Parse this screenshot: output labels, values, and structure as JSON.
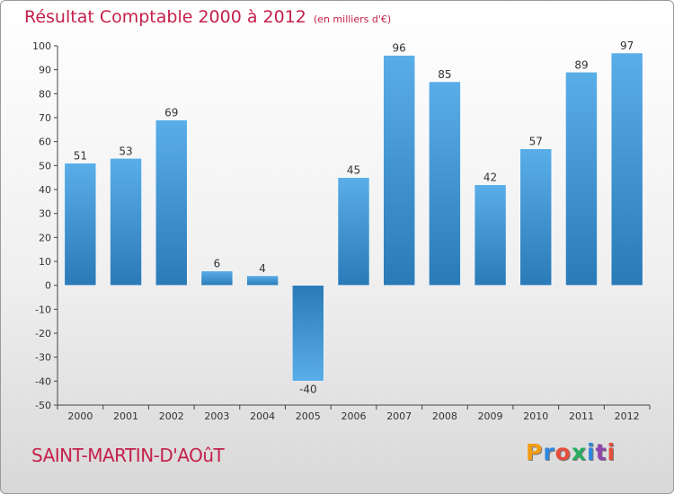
{
  "header": {
    "title": "Résultat Comptable 2000 à 2012",
    "unit": "(en milliers d'€)"
  },
  "footer": {
    "commune": "SAINT-MARTIN-D'AOûT",
    "logo_letters": [
      "P",
      "r",
      "o",
      "x",
      "i",
      "t",
      "i"
    ],
    "logo_colors": [
      "#f39c12",
      "#2e86de",
      "#e74c3c",
      "#27ae60",
      "#2e86de",
      "#8e44ad",
      "#e74c3c"
    ]
  },
  "chart_data": {
    "type": "bar",
    "title": "Résultat Comptable 2000 à 2012",
    "subtitle": "(en milliers d'€)",
    "categories": [
      "2000",
      "2001",
      "2002",
      "2003",
      "2004",
      "2005",
      "2006",
      "2007",
      "2008",
      "2009",
      "2010",
      "2011",
      "2012"
    ],
    "values": [
      51,
      53,
      69,
      6,
      4,
      -40,
      45,
      96,
      85,
      42,
      57,
      89,
      97
    ],
    "ylim": [
      -50,
      100
    ],
    "yticks": [
      100,
      90,
      80,
      70,
      60,
      50,
      40,
      30,
      20,
      10,
      0,
      -10,
      -20,
      -30,
      -40,
      -50
    ],
    "grid": false,
    "bar_color_light": "#5aaee8",
    "bar_color_dark": "#2a7ab8"
  }
}
